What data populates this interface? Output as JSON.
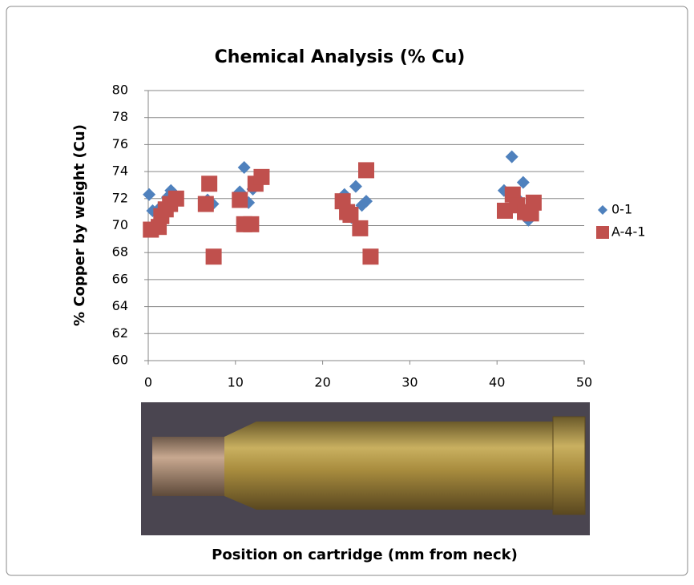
{
  "chart_data": {
    "type": "scatter",
    "title": "Chemical Analysis (% Cu)",
    "y_label": "% Copper by weight (Cu)",
    "x_label": "Position on cartridge (mm from neck)",
    "xlim": [
      0,
      50
    ],
    "xticks": [
      0,
      10,
      20,
      30,
      40,
      50
    ],
    "ylim": [
      60,
      80
    ],
    "yticks": [
      60,
      62,
      64,
      66,
      68,
      70,
      72,
      74,
      76,
      78,
      80
    ],
    "grid": true,
    "legend": "right",
    "series": [
      {
        "name": "0-1",
        "color": "#4f81bd",
        "marker": "diamond",
        "x": [
          0.1,
          0.5,
          1.3,
          2.2,
          2.6,
          6.8,
          7.4,
          10.5,
          11.0,
          11.5,
          12.0,
          22.5,
          23.0,
          23.3,
          23.8,
          24.5,
          25.0,
          40.8,
          41.7,
          42.5,
          43.0,
          43.3,
          43.6
        ],
        "values": [
          72.3,
          71.1,
          71.3,
          72.1,
          72.6,
          71.9,
          71.6,
          72.5,
          74.3,
          71.7,
          72.7,
          72.3,
          71.0,
          70.6,
          72.9,
          71.5,
          71.8,
          72.6,
          75.1,
          71.9,
          73.2,
          71.1,
          70.4
        ]
      },
      {
        "name": "A-4-1",
        "color": "#c0504d",
        "marker": "square",
        "x": [
          0.3,
          1.2,
          1.5,
          2.0,
          2.5,
          3.2,
          6.6,
          7.0,
          7.5,
          10.5,
          11.0,
          11.8,
          12.3,
          13.0,
          22.3,
          22.8,
          23.2,
          24.3,
          25.0,
          25.5,
          40.9,
          41.8,
          42.3,
          43.2,
          43.9,
          44.2
        ],
        "values": [
          69.7,
          69.9,
          70.7,
          71.2,
          71.6,
          72.0,
          71.6,
          73.1,
          67.7,
          71.9,
          70.1,
          70.1,
          73.1,
          73.6,
          71.8,
          71.0,
          70.8,
          69.8,
          74.1,
          67.7,
          71.1,
          72.3,
          71.5,
          71.0,
          70.9,
          71.7
        ]
      }
    ]
  }
}
